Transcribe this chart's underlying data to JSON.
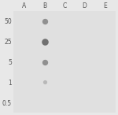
{
  "col_labels": [
    "A",
    "B",
    "C",
    "D",
    "E"
  ],
  "row_labels": [
    "50",
    "25",
    "5",
    "1",
    "0.5"
  ],
  "background_color": "#e8e8e8",
  "plot_bg_color": "#e0e0e0",
  "dots": [
    {
      "col": 1,
      "row": 0,
      "size": 28,
      "color": "#909090",
      "alpha": 1.0
    },
    {
      "col": 1,
      "row": 1,
      "size": 38,
      "color": "#707070",
      "alpha": 1.0
    },
    {
      "col": 1,
      "row": 2,
      "size": 28,
      "color": "#909090",
      "alpha": 1.0
    },
    {
      "col": 1,
      "row": 3,
      "size": 14,
      "color": "#b8b8b8",
      "alpha": 1.0
    }
  ],
  "figsize": [
    1.5,
    1.46
  ],
  "dpi": 100,
  "tick_fontsize": 5.5
}
